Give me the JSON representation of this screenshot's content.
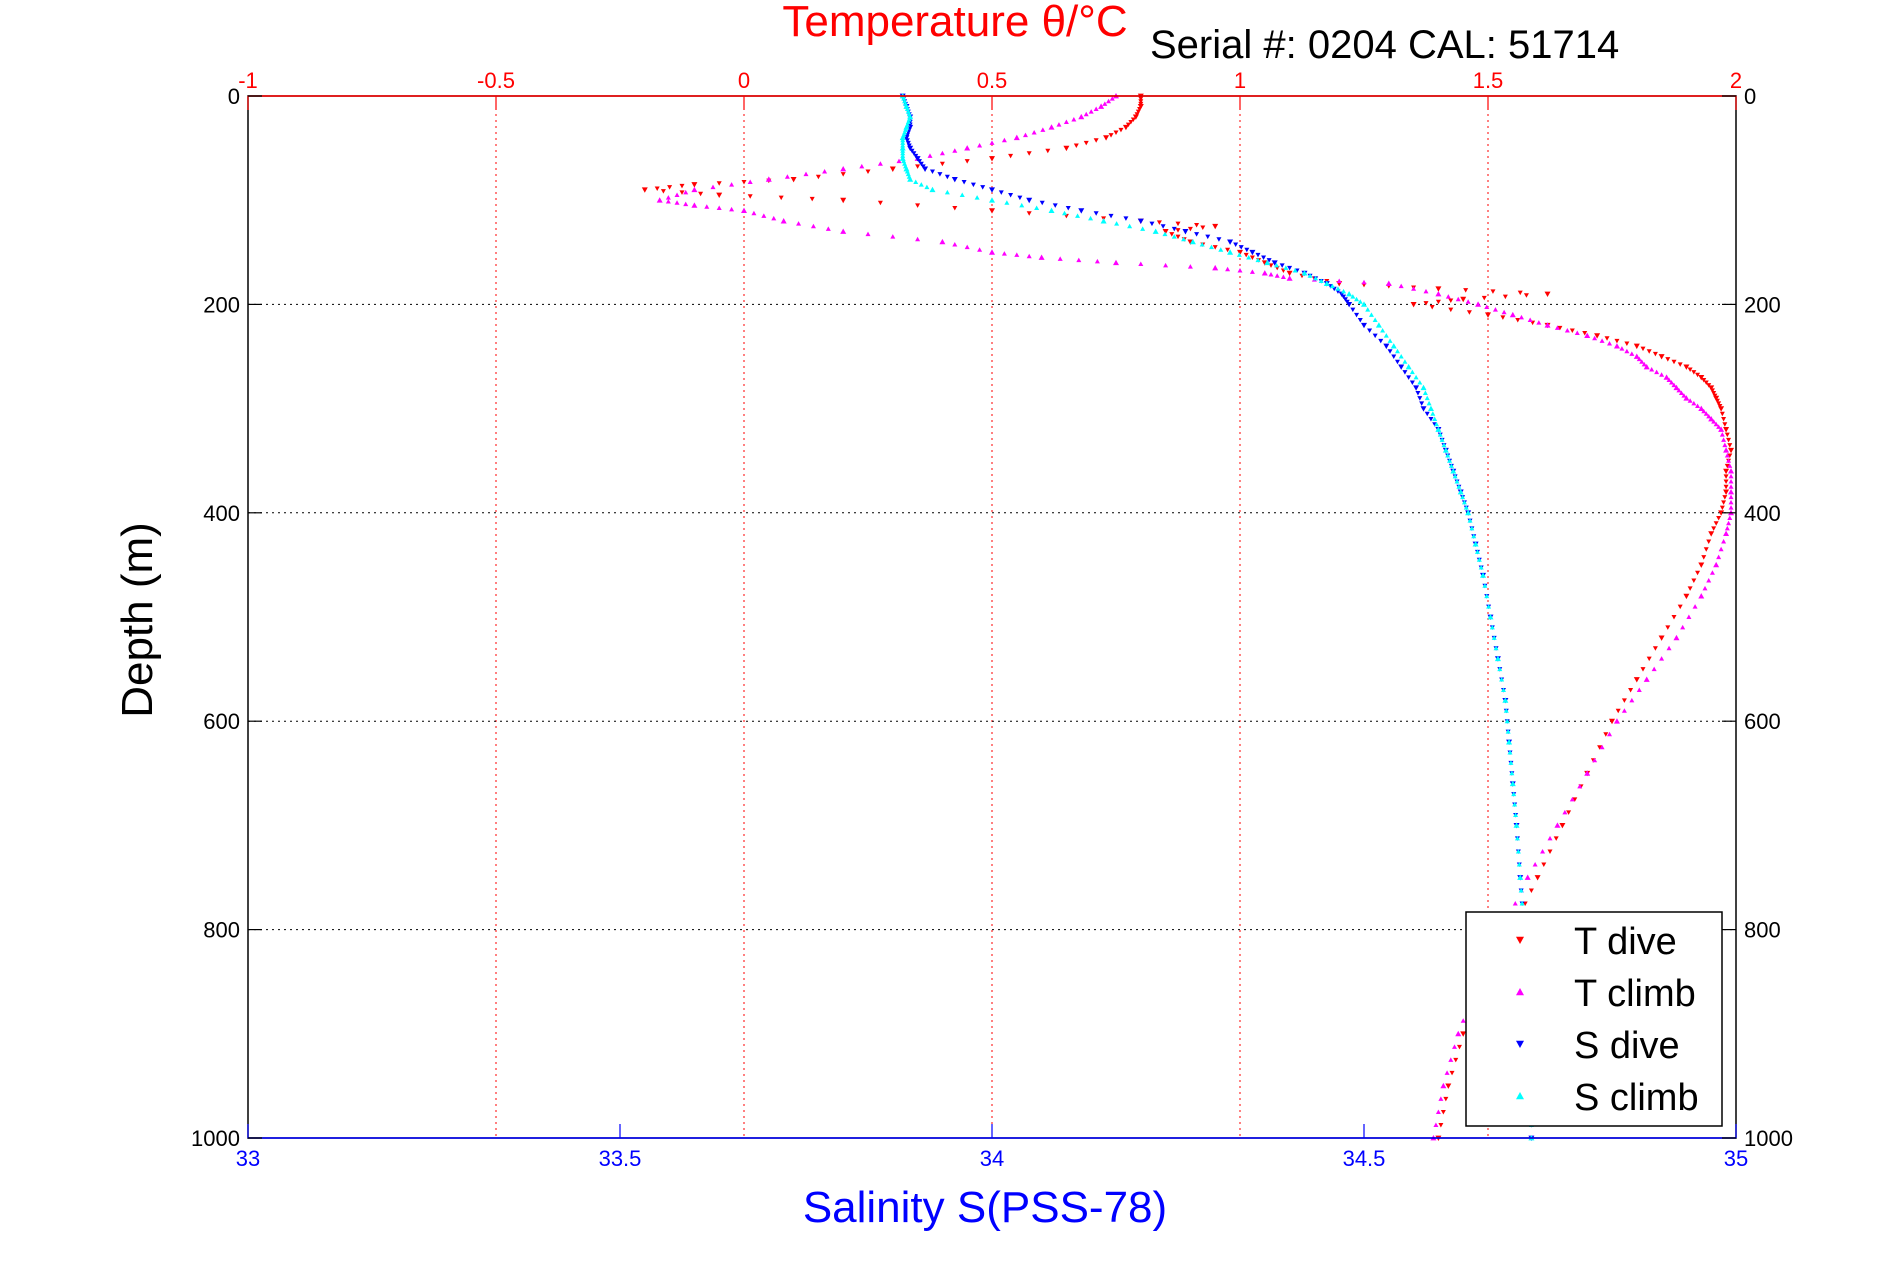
{
  "header": {
    "serial_text": "Serial #: 0204  CAL: 51714"
  },
  "chart_data": {
    "type": "scatter",
    "title": "Temperature θ/°C",
    "top_axis": {
      "label": "Temperature θ/°C",
      "range": [
        -1,
        2
      ],
      "ticks": [
        -1,
        -0.5,
        0,
        0.5,
        1,
        1.5,
        2
      ],
      "tick_labels": [
        "-1",
        "-0.5",
        "0",
        "0.5",
        "1",
        "1.5",
        "2"
      ],
      "color": "#ff0000"
    },
    "bottom_axis": {
      "label": "Salinity S(PSS-78)",
      "range": [
        33,
        35
      ],
      "ticks": [
        33,
        33.5,
        34,
        34.5,
        35
      ],
      "tick_labels": [
        "33",
        "33.5",
        "34",
        "34.5",
        "35"
      ],
      "color": "#0000ff"
    },
    "y_axis": {
      "label": "Depth (m)",
      "range": [
        0,
        1000
      ],
      "reversed": true,
      "ticks": [
        0,
        200,
        400,
        600,
        800,
        1000
      ],
      "tick_labels": [
        "0",
        "200",
        "400",
        "600",
        "800",
        "1000"
      ]
    },
    "grid": true,
    "legend": {
      "position": "bottom-right",
      "entries": [
        "T dive",
        "T climb",
        "S dive",
        "S climb"
      ]
    },
    "series": [
      {
        "name": "T dive",
        "axis": "temperature",
        "color": "#ff0000",
        "marker": "triangle-down",
        "points": [
          [
            0.8,
            0
          ],
          [
            0.8,
            10
          ],
          [
            0.79,
            20
          ],
          [
            0.77,
            30
          ],
          [
            0.73,
            40
          ],
          [
            0.65,
            50
          ],
          [
            0.5,
            60
          ],
          [
            0.3,
            70
          ],
          [
            0.1,
            80
          ],
          [
            -0.1,
            85
          ],
          [
            -0.2,
            90
          ],
          [
            -0.05,
            95
          ],
          [
            0.2,
            100
          ],
          [
            0.5,
            110
          ],
          [
            0.8,
            120
          ],
          [
            0.95,
            125
          ],
          [
            0.85,
            130
          ],
          [
            0.9,
            140
          ],
          [
            1.0,
            150
          ],
          [
            1.05,
            160
          ],
          [
            1.1,
            170
          ],
          [
            1.2,
            180
          ],
          [
            1.4,
            185
          ],
          [
            1.62,
            190
          ],
          [
            1.45,
            195
          ],
          [
            1.35,
            200
          ],
          [
            1.5,
            210
          ],
          [
            1.62,
            220
          ],
          [
            1.72,
            230
          ],
          [
            1.8,
            240
          ],
          [
            1.85,
            250
          ],
          [
            1.9,
            260
          ],
          [
            1.93,
            270
          ],
          [
            1.95,
            280
          ],
          [
            1.96,
            290
          ],
          [
            1.97,
            300
          ],
          [
            1.98,
            320
          ],
          [
            1.99,
            340
          ],
          [
            1.98,
            360
          ],
          [
            1.98,
            380
          ],
          [
            1.97,
            400
          ],
          [
            1.95,
            420
          ],
          [
            1.93,
            450
          ],
          [
            1.9,
            480
          ],
          [
            1.85,
            520
          ],
          [
            1.8,
            560
          ],
          [
            1.75,
            600
          ],
          [
            1.7,
            650
          ],
          [
            1.65,
            700
          ],
          [
            1.6,
            750
          ],
          [
            1.55,
            800
          ],
          [
            1.5,
            850
          ],
          [
            1.45,
            900
          ],
          [
            1.42,
            950
          ],
          [
            1.4,
            1000
          ]
        ]
      },
      {
        "name": "T climb",
        "axis": "temperature",
        "color": "#ff00ff",
        "marker": "triangle-up",
        "points": [
          [
            0.75,
            0
          ],
          [
            0.72,
            10
          ],
          [
            0.68,
            20
          ],
          [
            0.62,
            30
          ],
          [
            0.55,
            40
          ],
          [
            0.45,
            50
          ],
          [
            0.35,
            60
          ],
          [
            0.2,
            70
          ],
          [
            0.05,
            80
          ],
          [
            -0.1,
            90
          ],
          [
            -0.17,
            100
          ],
          [
            -0.1,
            105
          ],
          [
            0.0,
            110
          ],
          [
            0.08,
            120
          ],
          [
            0.2,
            130
          ],
          [
            0.4,
            140
          ],
          [
            0.5,
            150
          ],
          [
            0.6,
            155
          ],
          [
            0.75,
            160
          ],
          [
            0.95,
            165
          ],
          [
            1.05,
            170
          ],
          [
            1.1,
            175
          ],
          [
            1.3,
            180
          ],
          [
            1.4,
            190
          ],
          [
            1.48,
            200
          ],
          [
            1.55,
            210
          ],
          [
            1.62,
            220
          ],
          [
            1.7,
            230
          ],
          [
            1.76,
            240
          ],
          [
            1.8,
            250
          ],
          [
            1.82,
            260
          ],
          [
            1.86,
            270
          ],
          [
            1.88,
            280
          ],
          [
            1.9,
            290
          ],
          [
            1.93,
            300
          ],
          [
            1.95,
            310
          ],
          [
            1.97,
            320
          ],
          [
            1.98,
            340
          ],
          [
            1.99,
            360
          ],
          [
            1.99,
            380
          ],
          [
            1.99,
            400
          ],
          [
            1.98,
            420
          ],
          [
            1.96,
            450
          ],
          [
            1.93,
            480
          ],
          [
            1.88,
            520
          ],
          [
            1.82,
            560
          ],
          [
            1.76,
            600
          ],
          [
            1.7,
            650
          ],
          [
            1.64,
            700
          ],
          [
            1.58,
            750
          ],
          [
            1.53,
            800
          ],
          [
            1.48,
            850
          ],
          [
            1.44,
            900
          ],
          [
            1.41,
            950
          ],
          [
            1.39,
            1000
          ]
        ]
      },
      {
        "name": "S dive",
        "axis": "salinity",
        "color": "#0000ff",
        "marker": "triangle-down",
        "points": [
          [
            33.88,
            0
          ],
          [
            33.885,
            10
          ],
          [
            33.89,
            20
          ],
          [
            33.89,
            30
          ],
          [
            33.885,
            40
          ],
          [
            33.89,
            50
          ],
          [
            33.9,
            60
          ],
          [
            33.91,
            70
          ],
          [
            33.95,
            80
          ],
          [
            34.0,
            90
          ],
          [
            34.05,
            100
          ],
          [
            34.12,
            110
          ],
          [
            34.2,
            120
          ],
          [
            34.26,
            130
          ],
          [
            34.32,
            140
          ],
          [
            34.35,
            150
          ],
          [
            34.38,
            160
          ],
          [
            34.42,
            170
          ],
          [
            34.45,
            180
          ],
          [
            34.47,
            190
          ],
          [
            34.48,
            200
          ],
          [
            34.5,
            220
          ],
          [
            34.53,
            240
          ],
          [
            34.55,
            260
          ],
          [
            34.57,
            280
          ],
          [
            34.58,
            300
          ],
          [
            34.6,
            320
          ],
          [
            34.61,
            340
          ],
          [
            34.62,
            360
          ],
          [
            34.63,
            380
          ],
          [
            34.64,
            400
          ],
          [
            34.65,
            430
          ],
          [
            34.66,
            460
          ],
          [
            34.67,
            500
          ],
          [
            34.68,
            540
          ],
          [
            34.69,
            580
          ],
          [
            34.695,
            620
          ],
          [
            34.7,
            660
          ],
          [
            34.705,
            700
          ],
          [
            34.71,
            750
          ],
          [
            34.715,
            800
          ],
          [
            34.72,
            850
          ],
          [
            34.72,
            900
          ],
          [
            34.725,
            950
          ],
          [
            34.725,
            1000
          ]
        ]
      },
      {
        "name": "S climb",
        "axis": "salinity",
        "color": "#00ffff",
        "marker": "triangle-up",
        "points": [
          [
            33.88,
            0
          ],
          [
            33.885,
            10
          ],
          [
            33.89,
            20
          ],
          [
            33.885,
            30
          ],
          [
            33.88,
            40
          ],
          [
            33.88,
            50
          ],
          [
            33.88,
            60
          ],
          [
            33.885,
            70
          ],
          [
            33.89,
            80
          ],
          [
            33.92,
            90
          ],
          [
            34.0,
            100
          ],
          [
            34.08,
            110
          ],
          [
            34.15,
            120
          ],
          [
            34.22,
            130
          ],
          [
            34.27,
            140
          ],
          [
            34.32,
            150
          ],
          [
            34.37,
            160
          ],
          [
            34.42,
            170
          ],
          [
            34.45,
            180
          ],
          [
            34.48,
            190
          ],
          [
            34.5,
            200
          ],
          [
            34.52,
            220
          ],
          [
            34.54,
            240
          ],
          [
            34.56,
            260
          ],
          [
            34.58,
            280
          ],
          [
            34.59,
            300
          ],
          [
            34.6,
            320
          ],
          [
            34.61,
            340
          ],
          [
            34.62,
            360
          ],
          [
            34.63,
            380
          ],
          [
            34.64,
            400
          ],
          [
            34.65,
            430
          ],
          [
            34.66,
            460
          ],
          [
            34.67,
            500
          ],
          [
            34.68,
            540
          ],
          [
            34.69,
            580
          ],
          [
            34.695,
            620
          ],
          [
            34.7,
            660
          ],
          [
            34.705,
            700
          ],
          [
            34.71,
            750
          ],
          [
            34.715,
            800
          ],
          [
            34.72,
            850
          ],
          [
            34.72,
            900
          ],
          [
            34.725,
            950
          ],
          [
            34.725,
            1000
          ]
        ]
      }
    ]
  }
}
